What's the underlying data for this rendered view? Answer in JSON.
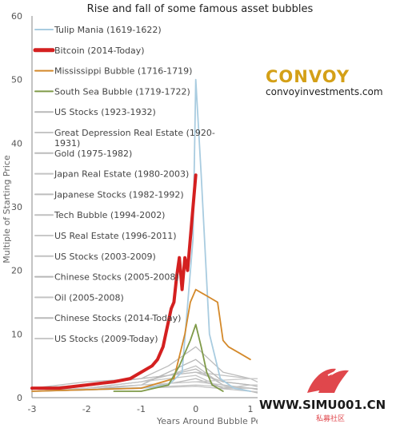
{
  "chart_data": {
    "type": "line",
    "title": "Rise and fall of some famous asset bubbles",
    "xlabel": "Years Around Bubble Pe...",
    "ylabel": "Multiple of Starting Price",
    "xlim": [
      -3,
      1.25
    ],
    "ylim": [
      0,
      60
    ],
    "x_ticks": [
      "-3",
      "-2",
      "-1",
      "0",
      "1"
    ],
    "y_ticks": [
      "0",
      "10",
      "20",
      "30",
      "40",
      "50",
      "60"
    ],
    "grid": false,
    "legend_position": "left",
    "series": [
      {
        "name": "Tulip Mania (1619-1622)",
        "color": "#a9cce0",
        "highlight": false,
        "x": [
          -3,
          -1,
          -0.5,
          -0.25,
          -0.05,
          0,
          0.1,
          0.25,
          0.45,
          0.7,
          1
        ],
        "y": [
          1,
          1.5,
          2,
          4,
          25,
          50,
          35,
          10,
          3,
          1.5,
          1
        ]
      },
      {
        "name": "Bitcoin (2014-Today)",
        "color": "#d42020",
        "highlight": true,
        "x": [
          -3,
          -2.5,
          -2,
          -1.5,
          -1.2,
          -1,
          -0.8,
          -0.7,
          -0.6,
          -0.55,
          -0.5,
          -0.45,
          -0.4,
          -0.35,
          -0.3,
          -0.25,
          -0.2,
          -0.15,
          -0.1,
          -0.05,
          0
        ],
        "y": [
          1.5,
          1.5,
          2,
          2.5,
          3,
          4,
          5,
          6,
          8,
          10,
          12,
          14,
          15,
          19,
          22,
          17,
          22,
          20,
          25,
          30,
          35
        ]
      },
      {
        "name": "Mississippi Bubble (1716-1719)",
        "color": "#d4892a",
        "highlight": false,
        "x": [
          -3,
          -1,
          -0.4,
          -0.2,
          -0.1,
          0,
          0.2,
          0.4,
          0.5,
          0.6,
          0.8,
          1
        ],
        "y": [
          1,
          1.5,
          3,
          10,
          15,
          17,
          16,
          15,
          9,
          8,
          7,
          6
        ]
      },
      {
        "name": "South Sea Bubble (1719-1722)",
        "color": "#7f9a48",
        "highlight": false,
        "x": [
          -1.5,
          -1,
          -0.5,
          -0.3,
          -0.1,
          0,
          0.1,
          0.2,
          0.3,
          0.5
        ],
        "y": [
          1,
          1,
          2,
          5,
          9,
          11.5,
          8,
          4,
          2,
          1
        ]
      },
      {
        "name": "US Stocks (1923-1932)",
        "color": "#b9b9b9",
        "highlight": false,
        "x": [
          -3,
          -2,
          -1,
          -0.5,
          0,
          0.5,
          1,
          1.25
        ],
        "y": [
          1,
          1.5,
          2.5,
          3.5,
          4.5,
          2,
          1,
          0.5
        ]
      },
      {
        "name": "Great Depression Real Estate (1920-1931)",
        "color": "#c6c6c6",
        "highlight": false,
        "x": [
          -3,
          -2,
          -1,
          0,
          1,
          1.25
        ],
        "y": [
          1,
          1.5,
          2,
          2.5,
          1.5,
          1
        ]
      },
      {
        "name": "Gold (1975-1982)",
        "color": "#bcbcbc",
        "highlight": false,
        "x": [
          -3,
          -2,
          -1,
          -0.5,
          0,
          0.5,
          1,
          1.25
        ],
        "y": [
          1.5,
          2.5,
          3,
          5,
          8,
          4,
          3,
          3
        ]
      },
      {
        "name": "Japan Real Estate (1980-2003)",
        "color": "#c3c3c3",
        "highlight": false,
        "x": [
          -3,
          -2,
          -1,
          0,
          1,
          1.25
        ],
        "y": [
          1.5,
          2,
          3,
          4,
          3,
          2
        ]
      },
      {
        "name": "Japanese Stocks (1982-1992)",
        "color": "#bdbdbd",
        "highlight": false,
        "x": [
          -3,
          -2,
          -1,
          0,
          0.5,
          1,
          1.25
        ],
        "y": [
          1.5,
          2,
          3,
          4,
          2.5,
          2,
          1.5
        ]
      },
      {
        "name": "Tech Bubble (1994-2002)",
        "color": "#c0c0c0",
        "highlight": false,
        "x": [
          -3,
          -2,
          -1,
          -0.5,
          0,
          0.5,
          1,
          1.25
        ],
        "y": [
          1,
          1.5,
          2.5,
          3.5,
          5,
          2,
          1,
          0.8
        ]
      },
      {
        "name": "US Real Estate (1996-2011)",
        "color": "#c8c8c8",
        "highlight": false,
        "x": [
          -3,
          -2,
          -1,
          0,
          1,
          1.25
        ],
        "y": [
          1,
          1.3,
          1.6,
          2,
          1.5,
          1.3
        ]
      },
      {
        "name": "US Stocks (2003-2009)",
        "color": "#c2c2c2",
        "highlight": false,
        "x": [
          -3,
          -2,
          -1,
          0,
          1,
          1.25
        ],
        "y": [
          1,
          1.2,
          1.5,
          1.8,
          1,
          0.8
        ]
      },
      {
        "name": "Chinese Stocks (2005-2008)",
        "color": "#b6b6b6",
        "highlight": false,
        "x": [
          -3,
          -2,
          -1,
          -0.5,
          0,
          0.5,
          1,
          1.25
        ],
        "y": [
          1,
          1.2,
          2,
          4,
          6,
          2.5,
          2,
          2
        ]
      },
      {
        "name": "Oil (2005-2008)",
        "color": "#c4c4c4",
        "highlight": false,
        "x": [
          -3,
          -2,
          -1,
          0,
          0.5,
          1,
          1.25
        ],
        "y": [
          1,
          1.5,
          2.5,
          3.5,
          1.5,
          2,
          2
        ]
      },
      {
        "name": "Chinese Stocks (2014-Today)",
        "color": "#bababa",
        "highlight": false,
        "x": [
          -3,
          -2,
          -1,
          -0.3,
          0,
          0.5,
          1,
          1.25
        ],
        "y": [
          1,
          1.2,
          1.5,
          2.5,
          3,
          1.5,
          1.5,
          1.3
        ]
      },
      {
        "name": "US Stocks (2009-Today)",
        "color": "#c9c9c9",
        "highlight": false,
        "x": [
          -3,
          -2,
          -1,
          0,
          1,
          1.25
        ],
        "y": [
          1,
          1.5,
          2,
          2.5,
          3,
          3
        ]
      }
    ]
  },
  "brand": {
    "name": "CONVOY",
    "url": "convoyinvestments.com",
    "color": "#d4a017"
  },
  "watermark": {
    "site": "WWW.SIMU001.CN",
    "caption": "私募社区",
    "color": "#e0474c"
  }
}
